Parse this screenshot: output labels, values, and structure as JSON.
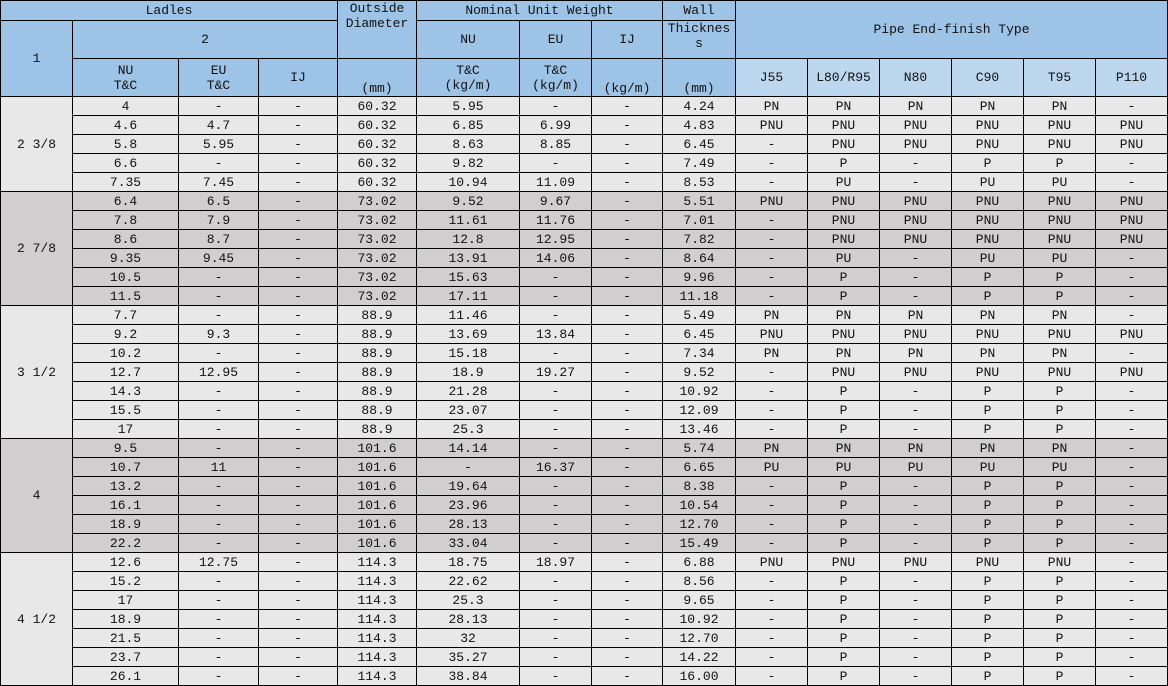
{
  "header": {
    "ladles": "Ladles",
    "col1": "1",
    "col2": "2",
    "ladle_nu": "NU\nT&C",
    "ladle_eu": "EU\nT&C",
    "ladle_ij": "IJ",
    "outside_diameter": "Outside Diameter",
    "od_unit": "(mm)",
    "nominal_unit_weight": "Nominal Unit Weight",
    "nuw_nu": "NU",
    "nuw_eu": "EU",
    "nuw_ij": "IJ",
    "nuw_nu_unit": "T&C\n(kg/m)",
    "nuw_eu_unit": "T&C\n(kg/m)",
    "nuw_ij_unit": "(kg/m)",
    "wall": "Wall",
    "thickness": "Thicknes s",
    "wall_unit": "(mm)",
    "pipe_end_finish": "Pipe End-finish Type",
    "grades": [
      "J55",
      "L80/R95",
      "N80",
      "C90",
      "T95",
      "P110"
    ]
  },
  "colors": {
    "header": "#9dc3e6",
    "grade_header": "#bdd7ee",
    "group_light": "#e8e8e8",
    "group_dark": "#d0cece"
  },
  "groups": [
    {
      "size": "2 3/8",
      "rows": [
        [
          "4",
          "-",
          "-",
          "60.32",
          "5.95",
          "-",
          "-",
          "4.24",
          "PN",
          "PN",
          "PN",
          "PN",
          "PN",
          "-"
        ],
        [
          "4.6",
          "4.7",
          "-",
          "60.32",
          "6.85",
          "6.99",
          "-",
          "4.83",
          "PNU",
          "PNU",
          "PNU",
          "PNU",
          "PNU",
          "PNU"
        ],
        [
          "5.8",
          "5.95",
          "-",
          "60.32",
          "8.63",
          "8.85",
          "-",
          "6.45",
          "-",
          "PNU",
          "PNU",
          "PNU",
          "PNU",
          "PNU"
        ],
        [
          "6.6",
          "-",
          "-",
          "60.32",
          "9.82",
          "-",
          "-",
          "7.49",
          "-",
          "P",
          "-",
          "P",
          "P",
          "-"
        ],
        [
          "7.35",
          "7.45",
          "-",
          "60.32",
          "10.94",
          "11.09",
          "-",
          "8.53",
          "-",
          "PU",
          "-",
          "PU",
          "PU",
          "-"
        ]
      ]
    },
    {
      "size": "2 7/8",
      "rows": [
        [
          "6.4",
          "6.5",
          "-",
          "73.02",
          "9.52",
          "9.67",
          "-",
          "5.51",
          "PNU",
          "PNU",
          "PNU",
          "PNU",
          "PNU",
          "PNU"
        ],
        [
          "7.8",
          "7.9",
          "-",
          "73.02",
          "11.61",
          "11.76",
          "-",
          "7.01",
          "-",
          "PNU",
          "PNU",
          "PNU",
          "PNU",
          "PNU"
        ],
        [
          "8.6",
          "8.7",
          "-",
          "73.02",
          "12.8",
          "12.95",
          "-",
          "7.82",
          "-",
          "PNU",
          "PNU",
          "PNU",
          "PNU",
          "PNU"
        ],
        [
          "9.35",
          "9.45",
          "-",
          "73.02",
          "13.91",
          "14.06",
          "-",
          "8.64",
          "-",
          "PU",
          "-",
          "PU",
          "PU",
          "-"
        ],
        [
          "10.5",
          "-",
          "-",
          "73.02",
          "15.63",
          "-",
          "-",
          "9.96",
          "-",
          "P",
          "-",
          "P",
          "P",
          "-"
        ],
        [
          "11.5",
          "-",
          "-",
          "73.02",
          "17.11",
          "-",
          "-",
          "11.18",
          "-",
          "P",
          "-",
          "P",
          "P",
          "-"
        ]
      ]
    },
    {
      "size": "3 1/2",
      "rows": [
        [
          "7.7",
          "-",
          "-",
          "88.9",
          "11.46",
          "-",
          "-",
          "5.49",
          "PN",
          "PN",
          "PN",
          "PN",
          "PN",
          "-"
        ],
        [
          "9.2",
          "9.3",
          "-",
          "88.9",
          "13.69",
          "13.84",
          "-",
          "6.45",
          "PNU",
          "PNU",
          "PNU",
          "PNU",
          "PNU",
          "PNU"
        ],
        [
          "10.2",
          "-",
          "-",
          "88.9",
          "15.18",
          "-",
          "-",
          "7.34",
          "PN",
          "PN",
          "PN",
          "PN",
          "PN",
          "-"
        ],
        [
          "12.7",
          "12.95",
          "-",
          "88.9",
          "18.9",
          "19.27",
          "-",
          "9.52",
          "-",
          "PNU",
          "PNU",
          "PNU",
          "PNU",
          "PNU"
        ],
        [
          "14.3",
          "-",
          "-",
          "88.9",
          "21.28",
          "-",
          "-",
          "10.92",
          "-",
          "P",
          "-",
          "P",
          "P",
          "-"
        ],
        [
          "15.5",
          "-",
          "-",
          "88.9",
          "23.07",
          "-",
          "-",
          "12.09",
          "-",
          "P",
          "-",
          "P",
          "P",
          "-"
        ],
        [
          "17",
          "-",
          "-",
          "88.9",
          "25.3",
          "-",
          "-",
          "13.46",
          "-",
          "P",
          "-",
          "P",
          "P",
          "-"
        ]
      ]
    },
    {
      "size": "4",
      "rows": [
        [
          "9.5",
          "-",
          "-",
          "101.6",
          "14.14",
          "-",
          "-",
          "5.74",
          "PN",
          "PN",
          "PN",
          "PN",
          "PN",
          "-"
        ],
        [
          "10.7",
          "11",
          "-",
          "101.6",
          "-",
          "16.37",
          "-",
          "6.65",
          "PU",
          "PU",
          "PU",
          "PU",
          "PU",
          "-"
        ],
        [
          "13.2",
          "-",
          "-",
          "101.6",
          "19.64",
          "-",
          "-",
          "8.38",
          "-",
          "P",
          "-",
          "P",
          "P",
          "-"
        ],
        [
          "16.1",
          "-",
          "-",
          "101.6",
          "23.96",
          "-",
          "-",
          "10.54",
          "-",
          "P",
          "-",
          "P",
          "P",
          "-"
        ],
        [
          "18.9",
          "-",
          "-",
          "101.6",
          "28.13",
          "-",
          "-",
          "12.70",
          "-",
          "P",
          "-",
          "P",
          "P",
          "-"
        ],
        [
          "22.2",
          "-",
          "-",
          "101.6",
          "33.04",
          "-",
          "-",
          "15.49",
          "-",
          "P",
          "-",
          "P",
          "P",
          "-"
        ]
      ]
    },
    {
      "size": "4 1/2",
      "rows": [
        [
          "12.6",
          "12.75",
          "-",
          "114.3",
          "18.75",
          "18.97",
          "-",
          "6.88",
          "PNU",
          "PNU",
          "PNU",
          "PNU",
          "PNU",
          "-"
        ],
        [
          "15.2",
          "-",
          "-",
          "114.3",
          "22.62",
          "-",
          "-",
          "8.56",
          "-",
          "P",
          "-",
          "P",
          "P",
          "-"
        ],
        [
          "17",
          "-",
          "-",
          "114.3",
          "25.3",
          "-",
          "-",
          "9.65",
          "-",
          "P",
          "-",
          "P",
          "P",
          "-"
        ],
        [
          "18.9",
          "-",
          "-",
          "114.3",
          "28.13",
          "-",
          "-",
          "10.92",
          "-",
          "P",
          "-",
          "P",
          "P",
          "-"
        ],
        [
          "21.5",
          "-",
          "-",
          "114.3",
          "32",
          "-",
          "-",
          "12.70",
          "-",
          "P",
          "-",
          "P",
          "P",
          "-"
        ],
        [
          "23.7",
          "-",
          "-",
          "114.3",
          "35.27",
          "-",
          "-",
          "14.22",
          "-",
          "P",
          "-",
          "P",
          "P",
          "-"
        ],
        [
          "26.1",
          "-",
          "-",
          "114.3",
          "38.84",
          "-",
          "-",
          "16.00",
          "-",
          "P",
          "-",
          "P",
          "P",
          "-"
        ]
      ]
    }
  ]
}
